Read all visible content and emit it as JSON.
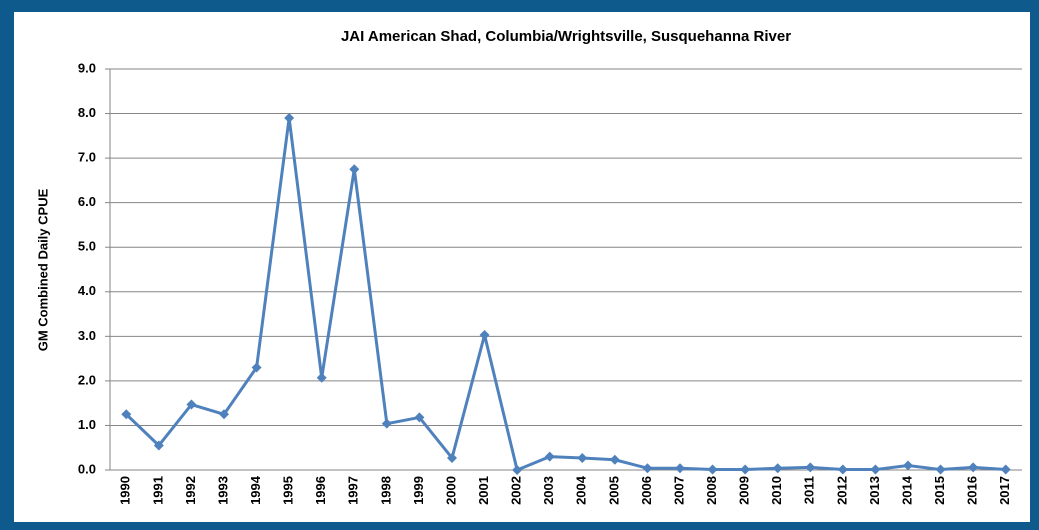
{
  "chart_data": {
    "type": "line",
    "title": "JAI American Shad, Columbia/Wrightsville, Susquehanna River",
    "y_label": "GM Combined Daily CPUE",
    "categories": [
      "1990",
      "1991",
      "1992",
      "1993",
      "1994",
      "1995",
      "1996",
      "1997",
      "1998",
      "1999",
      "2000",
      "2001",
      "2002",
      "2003",
      "2004",
      "2005",
      "2006",
      "2007",
      "2008",
      "2009",
      "2010",
      "2011",
      "2012",
      "2013",
      "2014",
      "2015",
      "2016",
      "2017"
    ],
    "series": [
      {
        "color": "#4f81bd",
        "values": [
          1.25,
          0.55,
          1.47,
          1.25,
          2.3,
          7.9,
          2.07,
          6.75,
          1.04,
          1.18,
          0.27,
          3.03,
          0.0,
          0.3,
          0.27,
          0.23,
          0.04,
          0.04,
          0.01,
          0.01,
          0.04,
          0.06,
          0.01,
          0.01,
          0.1,
          0.01,
          0.06,
          0.01
        ]
      }
    ],
    "ylim": [
      0,
      9
    ],
    "yticks": [
      {
        "value": 0,
        "label": "0.0"
      },
      {
        "value": 1,
        "label": "1.0"
      },
      {
        "value": 2,
        "label": "2.0"
      },
      {
        "value": 3,
        "label": "3.0"
      },
      {
        "value": 4,
        "label": "4.0"
      },
      {
        "value": 5,
        "label": "5.0"
      },
      {
        "value": 6,
        "label": "6.0"
      },
      {
        "value": 7,
        "label": "7.0"
      },
      {
        "value": 8,
        "label": "8.0"
      },
      {
        "value": 9,
        "label": "9.0"
      }
    ],
    "grid": true
  }
}
